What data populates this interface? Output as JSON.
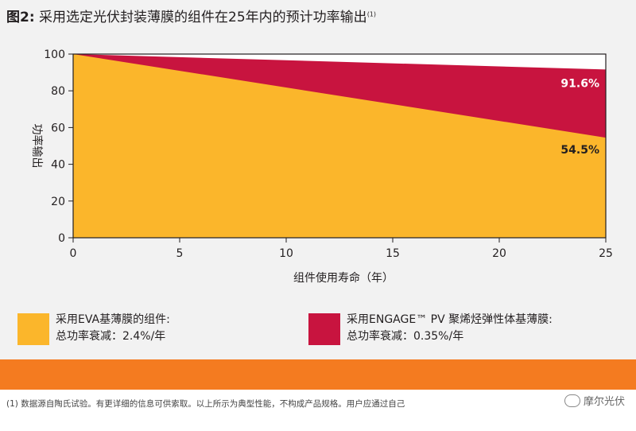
{
  "header": {
    "fig_label": "图2:",
    "title_text": "采用选定光伏封装薄膜的组件在25年内的预计功率输出",
    "title_sup": "(1)"
  },
  "chart_data": {
    "type": "area",
    "xlabel": "组件使用寿命（年）",
    "ylabel": "功率输出",
    "xlim": [
      0,
      25
    ],
    "ylim": [
      0,
      100
    ],
    "x_ticks": [
      0,
      5,
      10,
      15,
      20,
      25
    ],
    "y_ticks": [
      0,
      20,
      40,
      60,
      80,
      100
    ],
    "series": [
      {
        "name": "采用ENGAGE™ PV 聚烯烃弹性体基薄膜的组件",
        "color": "#c8143f",
        "x": [
          0,
          25
        ],
        "y": [
          100,
          91.6
        ],
        "end_label": "91.6%"
      },
      {
        "name": "采用EVA基薄膜的组件",
        "color": "#fbb62b",
        "x": [
          0,
          25
        ],
        "y": [
          100,
          54.5
        ],
        "end_label": "54.5%"
      }
    ],
    "grid": false
  },
  "legend": {
    "eva": {
      "line1": "采用EVA基薄膜的组件:",
      "line2": "总功率衰减：2.4%/年",
      "color": "#fbb62b"
    },
    "engage": {
      "line1": "采用ENGAGE™ PV 聚烯烃弹性体基薄膜:",
      "line2": "总功率衰减：0.35%/年",
      "color": "#c8143f"
    }
  },
  "footer": {
    "band_color": "#f47b20",
    "footnote": "(1) 数据源自陶氏试验。有更详细的信息可供索取。以上所示为典型性能，不构成产品规格。用户应通过自己",
    "watermark": "摩尔光伏",
    "watermark_icon": "wechat-icon"
  }
}
